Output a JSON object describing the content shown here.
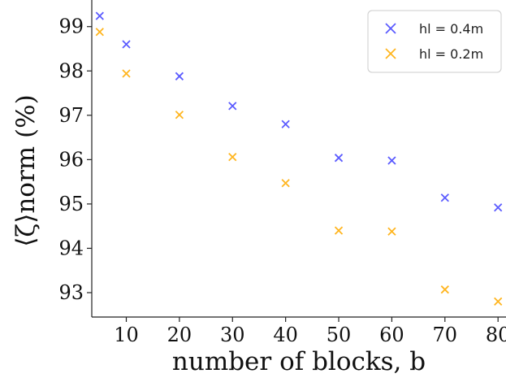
{
  "chart_data": {
    "type": "scatter",
    "title": "",
    "xlabel": "number of blocks, b",
    "ylabel": "⟨ζ⟩norm (%)",
    "xlim": [
      3.5,
      81.5
    ],
    "ylim": [
      92.45,
      99.6
    ],
    "xticks": [
      10,
      20,
      30,
      40,
      50,
      60,
      70,
      80
    ],
    "yticks": [
      93,
      94,
      95,
      96,
      97,
      98,
      99
    ],
    "grid": false,
    "legend_position": "top-right",
    "marker": "x",
    "series": [
      {
        "name": "hl = 0.4m",
        "color": "#5b5bff",
        "x": [
          5,
          10,
          20,
          30,
          40,
          50,
          60,
          70,
          80
        ],
        "y": [
          99.24,
          98.6,
          97.88,
          97.21,
          96.8,
          96.04,
          95.98,
          95.14,
          94.92
        ]
      },
      {
        "name": "hl = 0.2m",
        "color": "#ffb51f",
        "x": [
          5,
          10,
          20,
          30,
          40,
          50,
          60,
          70,
          80
        ],
        "y": [
          98.88,
          97.94,
          97.01,
          96.06,
          95.47,
          94.4,
          94.38,
          93.07,
          92.8
        ]
      }
    ]
  }
}
